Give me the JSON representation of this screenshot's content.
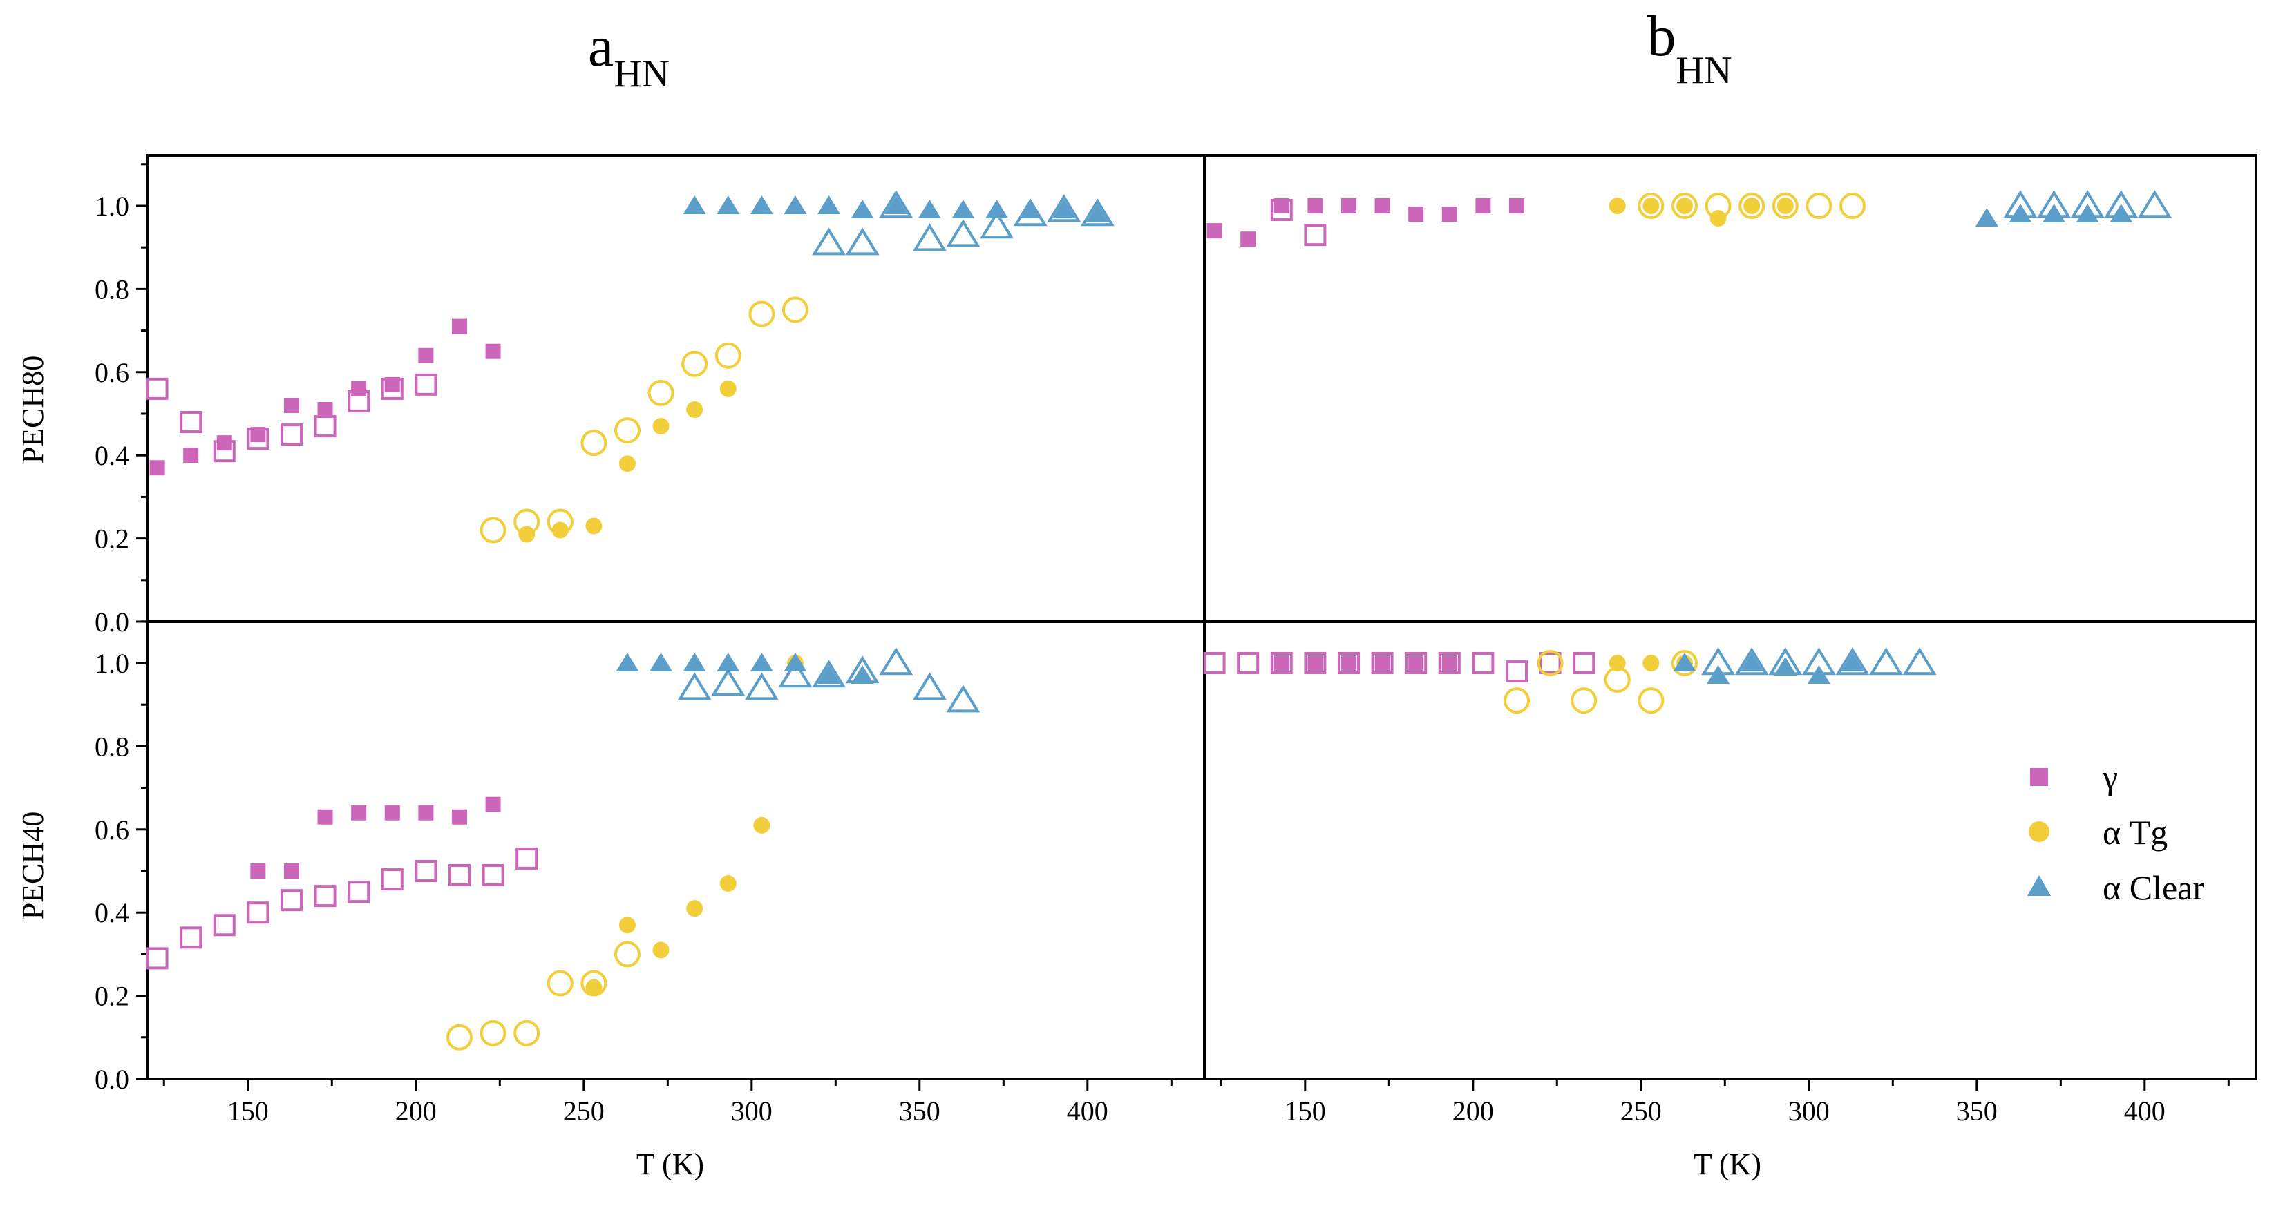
{
  "colors": {
    "gamma": "#cc66bb",
    "alphaTg": "#f2cf3a",
    "alphaClear": "#5b9ec9",
    "axis": "#000000"
  },
  "chart_data": {
    "type": "scatter",
    "titles": {
      "a": {
        "main": "a",
        "sub": "HN"
      },
      "b": {
        "main": "b",
        "sub": "HN"
      }
    },
    "xlabel": "T (K)",
    "xlim": [
      120,
      425
    ],
    "xticks": [
      "150",
      "200",
      "250",
      "300",
      "350",
      "400"
    ],
    "ylim": [
      0,
      1.1
    ],
    "yticks": [
      "0.0",
      "0.2",
      "0.4",
      "0.6",
      "0.8",
      "1.0"
    ],
    "ylabels": {
      "top": "PECH80",
      "bottom": "PECH40"
    },
    "legend": {
      "position": "right",
      "entries": [
        "γ",
        "α Tg",
        "α Clear"
      ]
    },
    "panels": {
      "a_top": {
        "gamma_filled": [
          [
            123,
            0.37
          ],
          [
            133,
            0.4
          ],
          [
            143,
            0.43
          ],
          [
            153,
            0.45
          ],
          [
            163,
            0.52
          ],
          [
            173,
            0.51
          ],
          [
            183,
            0.56
          ],
          [
            193,
            0.57
          ],
          [
            203,
            0.64
          ],
          [
            213,
            0.71
          ],
          [
            223,
            0.65
          ]
        ],
        "gamma_open": [
          [
            123,
            0.56
          ],
          [
            133,
            0.48
          ],
          [
            143,
            0.41
          ],
          [
            153,
            0.44
          ],
          [
            163,
            0.45
          ],
          [
            173,
            0.47
          ],
          [
            183,
            0.53
          ],
          [
            193,
            0.56
          ],
          [
            203,
            0.57
          ]
        ],
        "alphaTg_filled": [
          [
            233,
            0.21
          ],
          [
            243,
            0.22
          ],
          [
            253,
            0.23
          ],
          [
            263,
            0.38
          ],
          [
            273,
            0.47
          ],
          [
            283,
            0.51
          ],
          [
            293,
            0.56
          ]
        ],
        "alphaTg_open": [
          [
            223,
            0.22
          ],
          [
            233,
            0.24
          ],
          [
            243,
            0.24
          ],
          [
            253,
            0.43
          ],
          [
            263,
            0.46
          ],
          [
            273,
            0.55
          ],
          [
            283,
            0.62
          ],
          [
            293,
            0.64
          ],
          [
            303,
            0.74
          ],
          [
            313,
            0.75
          ]
        ],
        "alphaClear_filled": [
          [
            283,
            1.0
          ],
          [
            293,
            1.0
          ],
          [
            303,
            1.0
          ],
          [
            313,
            1.0
          ],
          [
            323,
            1.0
          ],
          [
            333,
            0.99
          ],
          [
            343,
            1.0
          ],
          [
            353,
            0.99
          ],
          [
            363,
            0.99
          ],
          [
            373,
            0.99
          ],
          [
            383,
            0.99
          ],
          [
            393,
            0.99
          ],
          [
            403,
            0.98
          ]
        ],
        "alphaClear_open": [
          [
            323,
            0.91
          ],
          [
            333,
            0.91
          ],
          [
            343,
            1.0
          ],
          [
            353,
            0.92
          ],
          [
            363,
            0.93
          ],
          [
            373,
            0.95
          ],
          [
            383,
            0.98
          ],
          [
            393,
            0.99
          ],
          [
            403,
            0.98
          ]
        ]
      },
      "b_top": {
        "gamma_filled": [
          [
            123,
            0.94
          ],
          [
            133,
            0.92
          ],
          [
            143,
            1.0
          ],
          [
            153,
            1.0
          ],
          [
            163,
            1.0
          ],
          [
            173,
            1.0
          ],
          [
            183,
            0.98
          ],
          [
            193,
            0.98
          ],
          [
            203,
            1.0
          ],
          [
            213,
            1.0
          ]
        ],
        "gamma_open": [
          [
            143,
            0.99
          ],
          [
            153,
            0.93
          ]
        ],
        "alphaTg_filled": [
          [
            243,
            1.0
          ],
          [
            253,
            1.0
          ],
          [
            263,
            1.0
          ],
          [
            273,
            0.97
          ],
          [
            283,
            1.0
          ],
          [
            293,
            1.0
          ]
        ],
        "alphaTg_open": [
          [
            253,
            1.0
          ],
          [
            263,
            1.0
          ],
          [
            273,
            1.0
          ],
          [
            283,
            1.0
          ],
          [
            293,
            1.0
          ],
          [
            303,
            1.0
          ],
          [
            313,
            1.0
          ]
        ],
        "alphaClear_filled": [
          [
            353,
            0.97
          ],
          [
            363,
            0.98
          ],
          [
            373,
            0.98
          ],
          [
            383,
            0.98
          ],
          [
            393,
            0.98
          ]
        ],
        "alphaClear_open": [
          [
            363,
            1.0
          ],
          [
            373,
            1.0
          ],
          [
            383,
            1.0
          ],
          [
            393,
            1.0
          ],
          [
            403,
            1.0
          ]
        ]
      },
      "a_bottom": {
        "gamma_filled": [
          [
            153,
            0.5
          ],
          [
            163,
            0.5
          ],
          [
            173,
            0.63
          ],
          [
            183,
            0.64
          ],
          [
            193,
            0.64
          ],
          [
            203,
            0.64
          ],
          [
            213,
            0.63
          ],
          [
            223,
            0.66
          ]
        ],
        "gamma_open": [
          [
            123,
            0.29
          ],
          [
            133,
            0.34
          ],
          [
            143,
            0.37
          ],
          [
            153,
            0.4
          ],
          [
            163,
            0.43
          ],
          [
            173,
            0.44
          ],
          [
            183,
            0.45
          ],
          [
            193,
            0.48
          ],
          [
            203,
            0.5
          ],
          [
            213,
            0.49
          ],
          [
            223,
            0.49
          ],
          [
            233,
            0.53
          ]
        ],
        "alphaTg_filled": [
          [
            253,
            0.22
          ],
          [
            263,
            0.37
          ],
          [
            273,
            0.31
          ],
          [
            283,
            0.41
          ],
          [
            293,
            0.47
          ],
          [
            303,
            0.61
          ],
          [
            313,
            1.0
          ]
        ],
        "alphaTg_open": [
          [
            213,
            0.1
          ],
          [
            223,
            0.11
          ],
          [
            233,
            0.11
          ],
          [
            243,
            0.23
          ],
          [
            253,
            0.23
          ],
          [
            263,
            0.3
          ]
        ],
        "alphaClear_filled": [
          [
            263,
            1.0
          ],
          [
            273,
            1.0
          ],
          [
            283,
            1.0
          ],
          [
            293,
            1.0
          ],
          [
            303,
            1.0
          ],
          [
            313,
            1.0
          ],
          [
            323,
            0.97
          ],
          [
            333,
            0.97
          ]
        ],
        "alphaClear_open": [
          [
            283,
            0.94
          ],
          [
            293,
            0.95
          ],
          [
            303,
            0.94
          ],
          [
            313,
            0.97
          ],
          [
            323,
            0.97
          ],
          [
            333,
            0.98
          ],
          [
            343,
            1.0
          ],
          [
            353,
            0.94
          ],
          [
            363,
            0.91
          ]
        ]
      },
      "b_bottom": {
        "gamma_filled": [
          [
            143,
            1.0
          ],
          [
            153,
            1.0
          ],
          [
            163,
            1.0
          ],
          [
            173,
            1.0
          ],
          [
            183,
            1.0
          ],
          [
            193,
            1.0
          ]
        ],
        "gamma_open": [
          [
            123,
            1.0
          ],
          [
            133,
            1.0
          ],
          [
            143,
            1.0
          ],
          [
            153,
            1.0
          ],
          [
            163,
            1.0
          ],
          [
            173,
            1.0
          ],
          [
            183,
            1.0
          ],
          [
            193,
            1.0
          ],
          [
            203,
            1.0
          ],
          [
            213,
            0.98
          ],
          [
            223,
            1.0
          ],
          [
            233,
            1.0
          ]
        ],
        "alphaTg_filled": [
          [
            243,
            1.0
          ],
          [
            253,
            1.0
          ],
          [
            263,
            1.0
          ]
        ],
        "alphaTg_open": [
          [
            213,
            0.91
          ],
          [
            223,
            1.0
          ],
          [
            233,
            0.91
          ],
          [
            243,
            0.96
          ],
          [
            253,
            0.91
          ],
          [
            263,
            1.0
          ]
        ],
        "alphaClear_filled": [
          [
            263,
            1.0
          ],
          [
            273,
            0.97
          ],
          [
            283,
            1.0
          ],
          [
            293,
            0.99
          ],
          [
            303,
            0.97
          ],
          [
            313,
            1.0
          ]
        ],
        "alphaClear_open": [
          [
            273,
            1.0
          ],
          [
            283,
            1.0
          ],
          [
            293,
            1.0
          ],
          [
            303,
            1.0
          ],
          [
            313,
            1.0
          ],
          [
            323,
            1.0
          ],
          [
            333,
            1.0
          ]
        ]
      }
    }
  }
}
